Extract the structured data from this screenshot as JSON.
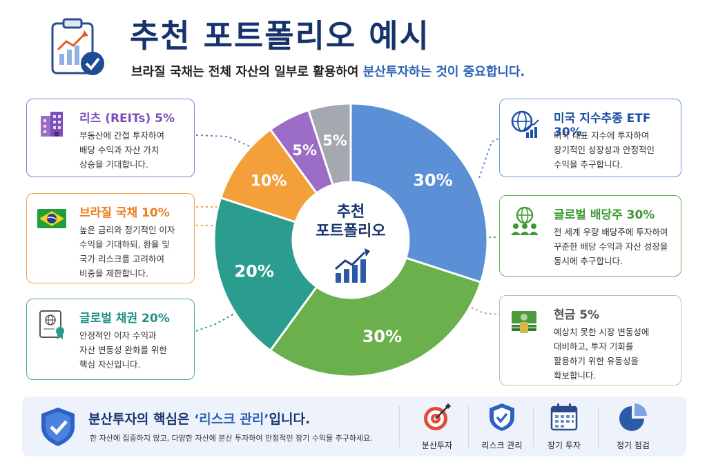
{
  "header": {
    "title": "추천 포트폴리오 예시",
    "subtitle_plain": "브라질 국채는 전체 자산의 일부로 활용하여 ",
    "subtitle_highlight": "분산투자하는 것이 중요합니다."
  },
  "center": {
    "line1": "추천",
    "line2": "포트폴리오"
  },
  "chart_data": {
    "type": "pie",
    "slices": [
      {
        "label": "미국 지수추종 ETF",
        "value": 30,
        "display": "30%",
        "color": "#5b8fd6"
      },
      {
        "label": "글로벌 배당주",
        "value": 30,
        "display": "30%",
        "color": "#6ab04c"
      },
      {
        "label": "글로벌 채권",
        "value": 20,
        "display": "20%",
        "color": "#2a9d8f"
      },
      {
        "label": "브라질 국채",
        "value": 10,
        "display": "10%",
        "color": "#f4a03a"
      },
      {
        "label": "리츠 (REITs)",
        "value": 5,
        "display": "5%",
        "color": "#9b6dc6"
      },
      {
        "label": "현금",
        "value": 5,
        "display": "5%",
        "color": "#a4a9b0"
      }
    ]
  },
  "cards": {
    "reits": {
      "title": "리츠 (REITs) 5%",
      "desc": "부동산에 간접 투자하여\n배당 수익과 자산 가치\n상승을 기대합니다."
    },
    "brazil": {
      "title": "브라질 국채 10%",
      "desc": "높은 금리와 정기적인 이자\n수익을 기대하되, 환율 및\n국가 리스크를 고려하여\n비중을 제한합니다."
    },
    "bonds": {
      "title": "글로벌 채권 20%",
      "desc": "안정적인 이자 수익과\n자산 변동성 완화를 위한\n핵심 자산입니다."
    },
    "us_etf": {
      "title": "미국 지수추종 ETF 30%",
      "desc": "미국 대표 지수에 투자하여\n장기적인 성장성과 안정적인\n수익을 추구합니다."
    },
    "dividend": {
      "title": "글로벌 배당주 30%",
      "desc": "전 세계 우량 배당주에 투자하여\n꾸준한 배당 수익과 자산 성장을\n동시에 추구합니다."
    },
    "cash": {
      "title": "현금 5%",
      "desc": "예상치 못한 시장 변동성에\n대비하고, 투자 기회를\n활용하기 위한 유동성을\n확보합니다."
    }
  },
  "bottom": {
    "title_plain_1": "분산투자의 핵심은 ",
    "title_highlight": "‘리스크 관리’",
    "title_plain_2": "입니다.",
    "desc": "한 자산에 집중하지 않고, 다양한 자산에 분산 투자하여 안정적인 장기 수익을 추구하세요.",
    "features": [
      "분산투자",
      "리스크 관리",
      "장기 투자",
      "정기 점검"
    ]
  }
}
